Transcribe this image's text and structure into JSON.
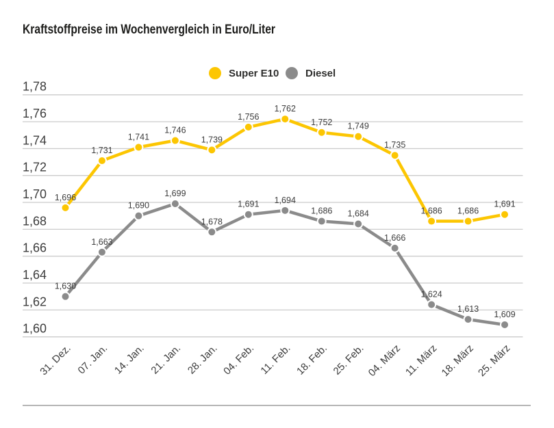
{
  "title": "Kraftstoffpreise im Wochenvergleich in Euro/Liter",
  "legend": [
    {
      "label": "Super E10",
      "color": "#fcc602"
    },
    {
      "label": "Diesel",
      "color": "#8b8b8b"
    }
  ],
  "chart_data": {
    "type": "line",
    "title": "Kraftstoffpreise im Wochenvergleich in Euro/Liter",
    "categories": [
      "31. Dez.",
      "07. Jan.",
      "14. Jan.",
      "21. Jan.",
      "28. Jan.",
      "04. Feb.",
      "11. Feb.",
      "18. Feb.",
      "25. Feb.",
      "04. März",
      "11. März",
      "18. März",
      "25. März"
    ],
    "series": [
      {
        "name": "Super E10",
        "color": "#fcc602",
        "values": [
          1.696,
          1.731,
          1.741,
          1.746,
          1.739,
          1.756,
          1.762,
          1.752,
          1.749,
          1.735,
          1.686,
          1.686,
          1.691
        ]
      },
      {
        "name": "Diesel",
        "color": "#8b8b8b",
        "values": [
          1.63,
          1.663,
          1.69,
          1.699,
          1.678,
          1.691,
          1.694,
          1.686,
          1.684,
          1.666,
          1.624,
          1.613,
          1.609
        ]
      }
    ],
    "value_labels": [
      [
        "1,696",
        "1,731",
        "1,741",
        "1,746",
        "1,739",
        "1,756",
        "1,762",
        "1,752",
        "1,749",
        "1,735",
        "1,686",
        "1,686",
        "1,691"
      ],
      [
        "1,630",
        "1,663",
        "1,690",
        "1,699",
        "1,678",
        "1,691",
        "1,694",
        "1,686",
        "1,684",
        "1,666",
        "1,624",
        "1,613",
        "1,609"
      ]
    ],
    "xlabel": "",
    "ylabel": "",
    "ylim": [
      1.6,
      1.78
    ],
    "ytick_step": 0.02,
    "ytick_labels": [
      "1,78",
      "1,76",
      "1,74",
      "1,72",
      "1,70",
      "1,68",
      "1,66",
      "1,64",
      "1,62",
      "1,60"
    ],
    "grid": "horizontal",
    "legend_position": "top-center"
  },
  "colors": {
    "grid_line": "#cbcbcb",
    "axis_text": "#3c3c3c",
    "value_text": "#3c3c3c",
    "bottom_rule": "#b5b5b5",
    "dot_ring": "#ffffff",
    "background": "#ffffff"
  }
}
